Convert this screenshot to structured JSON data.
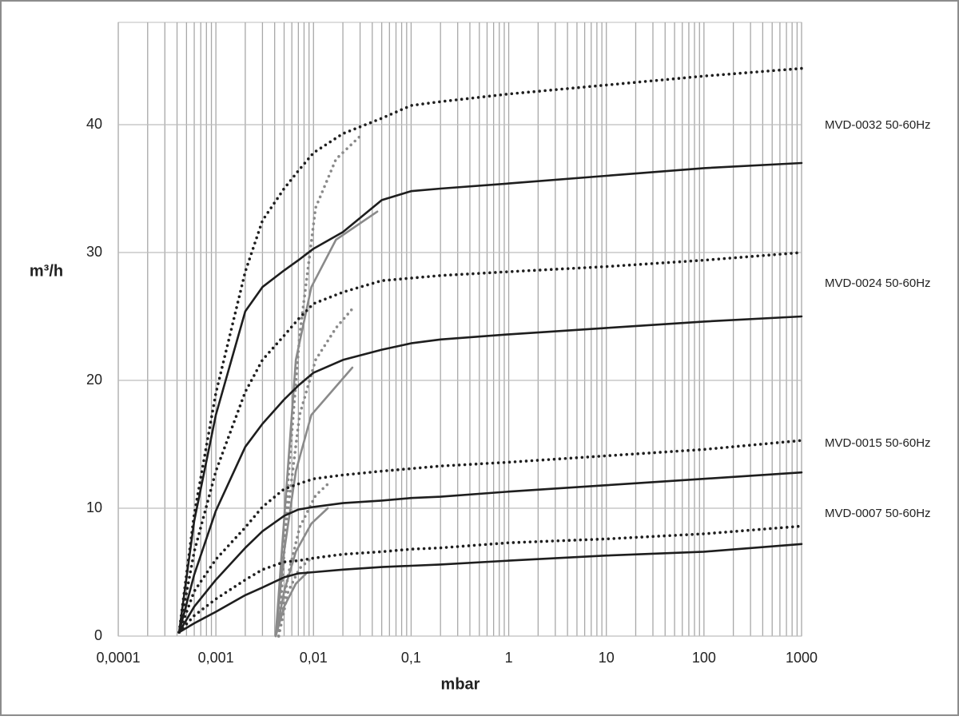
{
  "chart_data": {
    "type": "line",
    "x_label": "mbar",
    "y_label": "m³/h",
    "x_log": true,
    "grid": true,
    "xlim": [
      0.0001,
      1000
    ],
    "ylim": [
      0,
      48
    ],
    "xticks": [
      {
        "value": 0.0001,
        "label": "0,0001"
      },
      {
        "value": 0.001,
        "label": "0,001"
      },
      {
        "value": 0.01,
        "label": "0,01"
      },
      {
        "value": 0.1,
        "label": "0,1"
      },
      1,
      10,
      100,
      1000
    ],
    "yticks": [
      0,
      10,
      20,
      30,
      40
    ],
    "annotations": [
      "MVD-0032 50-60Hz",
      "MVD-0024 50-60Hz",
      "MVD-0015 50-60Hz",
      "MVD-0007 50-60Hz"
    ],
    "x": [
      0.00042,
      0.0006,
      0.001,
      0.002,
      0.003,
      0.005,
      0.007,
      0.01,
      0.02,
      0.05,
      0.1,
      0.2,
      1,
      10,
      100,
      1000
    ],
    "series": [
      {
        "color": "#1e1e1e",
        "dash": "dotted",
        "values": [
          0.3,
          9.5,
          19,
          28.5,
          32.5,
          35,
          36.4,
          37.8,
          39.3,
          40.5,
          41.5,
          41.8,
          42.4,
          43.1,
          43.8,
          44.4
        ]
      },
      {
        "color": "#1e1e1e",
        "dash": "solid",
        "values": [
          0.3,
          9,
          17.3,
          25.4,
          27.3,
          28.6,
          29.4,
          30.3,
          31.6,
          34.1,
          34.8,
          35,
          35.4,
          36,
          36.6,
          37
        ]
      },
      {
        "color": "#1e1e1e",
        "dash": "dotted",
        "values": [
          0.3,
          6.6,
          12.9,
          19.1,
          21.6,
          23.5,
          24.8,
          26,
          26.9,
          27.8,
          28,
          28.2,
          28.5,
          28.9,
          29.4,
          30
        ]
      },
      {
        "color": "#1e1e1e",
        "dash": "solid",
        "values": [
          0.3,
          4.8,
          9.8,
          14.8,
          16.6,
          18.5,
          19.6,
          20.6,
          21.6,
          22.4,
          22.9,
          23.2,
          23.6,
          24.1,
          24.6,
          25
        ]
      },
      {
        "color": "#1e1e1e",
        "dash": "dotted",
        "values": [
          0.3,
          3.5,
          6,
          8.5,
          10.1,
          11.5,
          11.9,
          12.3,
          12.6,
          12.9,
          13.1,
          13.3,
          13.6,
          14.1,
          14.6,
          15.3
        ]
      },
      {
        "color": "#1e1e1e",
        "dash": "solid",
        "values": [
          0.3,
          2.3,
          4.4,
          6.9,
          8.2,
          9.4,
          9.9,
          10.1,
          10.4,
          10.6,
          10.8,
          10.9,
          11.3,
          11.8,
          12.3,
          12.8
        ]
      },
      {
        "color": "#1e1e1e",
        "dash": "dotted",
        "values": [
          0.3,
          1.6,
          2.9,
          4.4,
          5.2,
          5.8,
          5.9,
          6.1,
          6.4,
          6.6,
          6.8,
          6.9,
          7.3,
          7.6,
          8,
          8.6
        ]
      },
      {
        "color": "#1e1e1e",
        "dash": "solid",
        "values": [
          0.3,
          1,
          1.9,
          3.2,
          3.8,
          4.6,
          4.9,
          5,
          5.2,
          5.4,
          5.5,
          5.6,
          5.9,
          6.3,
          6.6,
          7.2
        ]
      },
      {
        "color": "#8a8a8a",
        "dash": "solid",
        "x": [
          0.0041,
          0.005,
          0.0066,
          0.0095,
          0.017,
          0.045
        ],
        "values": [
          0,
          9.1,
          21.6,
          27.3,
          31,
          33.2
        ]
      },
      {
        "color": "#8a8a8a",
        "dash": "dotted",
        "x": [
          0.0044,
          0.0055,
          0.0072,
          0.0105,
          0.017,
          0.03
        ],
        "values": [
          0,
          12.3,
          23.5,
          33.5,
          37.3,
          39.1
        ]
      },
      {
        "color": "#8a8a8a",
        "dash": "solid",
        "x": [
          0.0041,
          0.005,
          0.0066,
          0.0095,
          0.025
        ],
        "values": [
          0,
          6.6,
          12.9,
          17.3,
          21
        ]
      },
      {
        "color": "#8a8a8a",
        "dash": "dotted",
        "x": [
          0.0044,
          0.0052,
          0.0072,
          0.0105,
          0.017,
          0.025
        ],
        "values": [
          0,
          8.5,
          17.3,
          21.6,
          24.1,
          25.6
        ]
      },
      {
        "color": "#8a8a8a",
        "dash": "solid",
        "x": [
          0.0041,
          0.005,
          0.0066,
          0.0095,
          0.014
        ],
        "values": [
          0,
          3.5,
          6.6,
          8.8,
          10
        ]
      },
      {
        "color": "#8a8a8a",
        "dash": "dotted",
        "x": [
          0.0044,
          0.0055,
          0.0072,
          0.0105,
          0.015
        ],
        "values": [
          0,
          4.8,
          8.5,
          11,
          12.1
        ]
      },
      {
        "color": "#8a8a8a",
        "dash": "solid",
        "x": [
          0.0041,
          0.005,
          0.0066,
          0.0087
        ],
        "values": [
          0,
          2.3,
          4.1,
          5
        ]
      },
      {
        "color": "#8a8a8a",
        "dash": "dotted",
        "x": [
          0.0044,
          0.0055,
          0.0072,
          0.0095
        ],
        "values": [
          0,
          3.5,
          5.3,
          6.1
        ]
      }
    ]
  }
}
